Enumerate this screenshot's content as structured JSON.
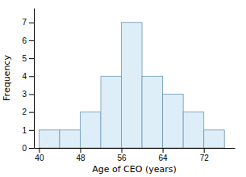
{
  "chart_data": {
    "type": "histogram",
    "bins": [
      40,
      44,
      48,
      52,
      56,
      60,
      64,
      68,
      72,
      76
    ],
    "values": [
      1,
      1,
      2,
      4,
      7,
      4,
      3,
      2,
      1
    ],
    "color": "#ddeef8",
    "xlabel": "Age of CEO (years)",
    "ylabel": "Frequency",
    "xlim": [
      39,
      78
    ],
    "ylim": [
      0,
      7.8
    ],
    "xticks": [
      40,
      48,
      56,
      64,
      72
    ],
    "yticks": [
      0,
      1,
      2,
      3,
      4,
      5,
      6,
      7
    ],
    "grid": false
  }
}
